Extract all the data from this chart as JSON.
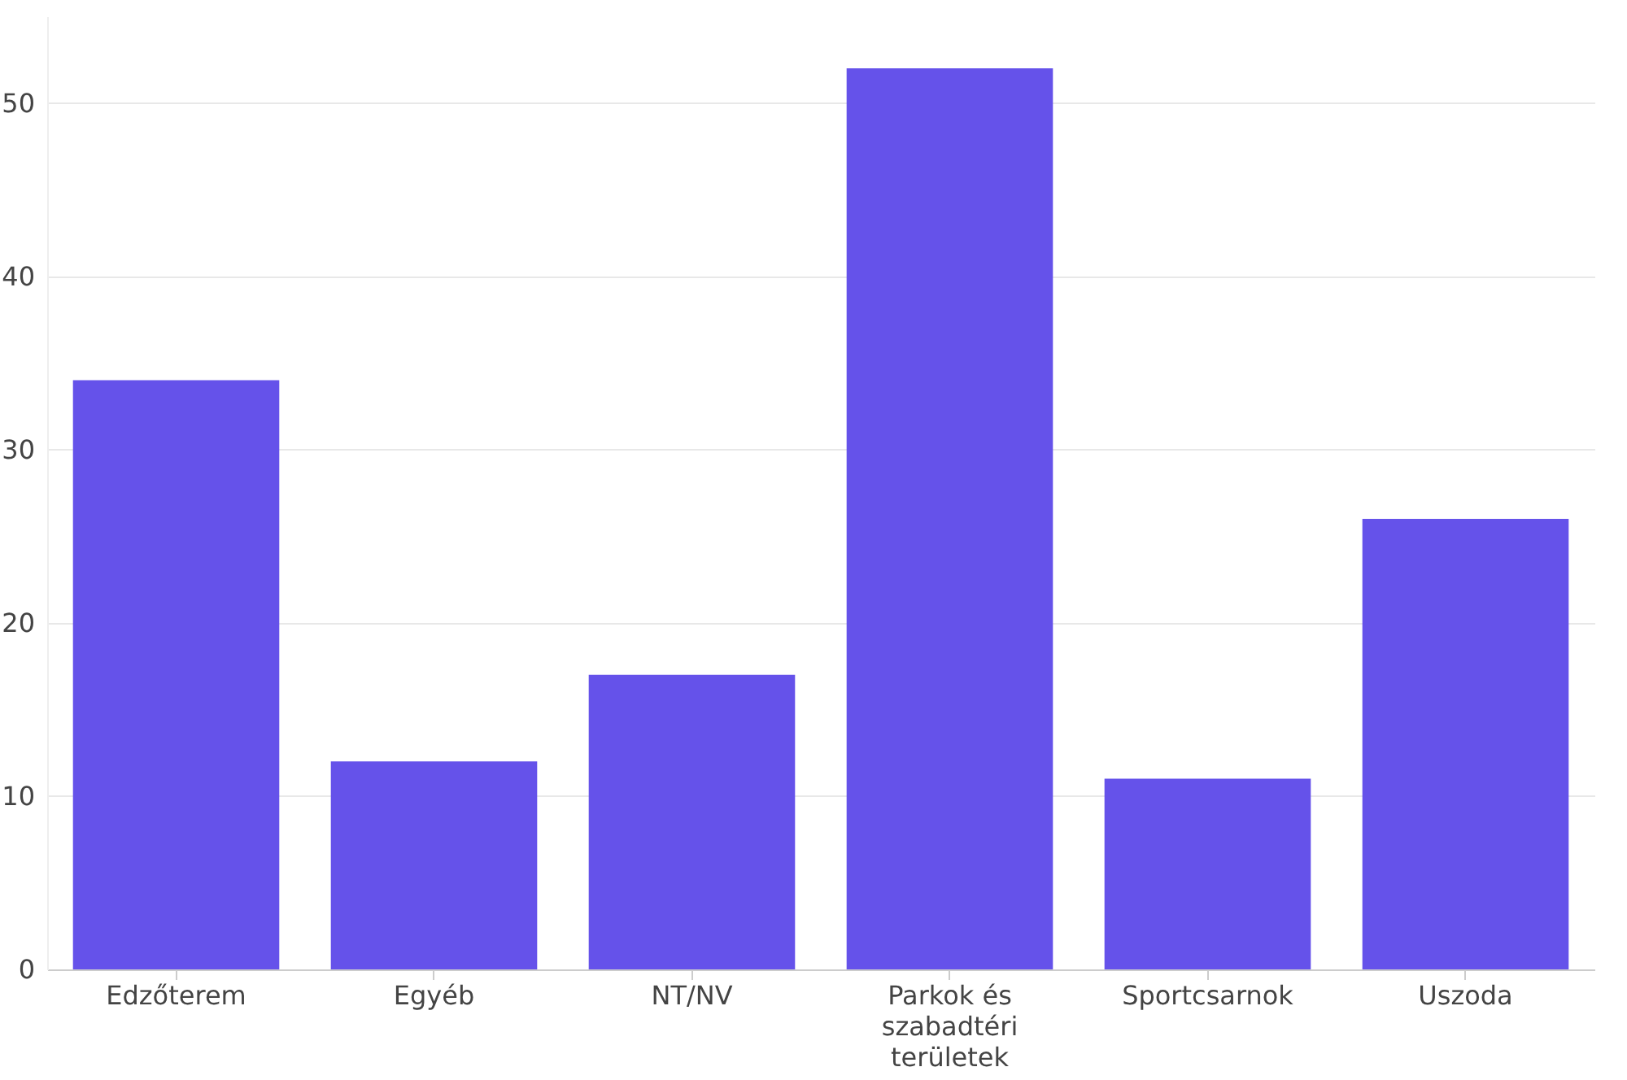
{
  "chart_data": {
    "type": "bar",
    "categories": [
      "Edzőterem",
      "Egyéb",
      "NT/NV",
      "Parkok és szabadtéri területek",
      "Sportcsarnok",
      "Uszoda"
    ],
    "values": [
      34,
      12,
      17,
      52,
      11,
      26
    ],
    "color": "#6552ea",
    "ylim": [
      0,
      55
    ],
    "yticks": [
      0,
      10,
      20,
      30,
      40,
      50
    ],
    "grid": "y"
  }
}
